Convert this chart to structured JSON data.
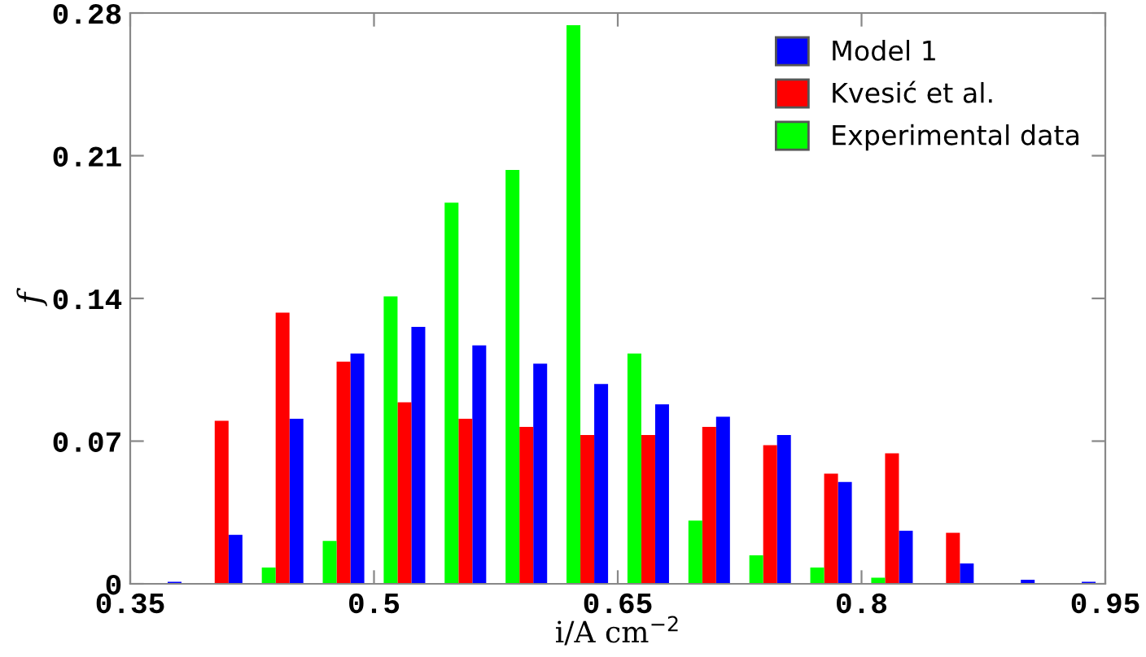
{
  "chart_data": {
    "type": "bar",
    "xlabel": "i/A cm$^{−2}$",
    "ylabel": "f",
    "x": [
      0.36875,
      0.40625,
      0.44375,
      0.48125,
      0.51875,
      0.55625,
      0.59375,
      0.63125,
      0.66875,
      0.70625,
      0.74375,
      0.78125,
      0.81875,
      0.85625,
      0.89375,
      0.93125
    ],
    "series": [
      {
        "name": "Model 1",
        "color": "#0000ff",
        "values": [
          0.001,
          0.024,
          0.081,
          0.113,
          0.126,
          0.117,
          0.108,
          0.098,
          0.088,
          0.082,
          0.073,
          0.05,
          0.026,
          0.01,
          0.002,
          0.001
        ]
      },
      {
        "name": "Kvesić et al.",
        "color": "#ff0000",
        "values": [
          0,
          0.08,
          0.133,
          0.109,
          0.089,
          0.081,
          0.077,
          0.073,
          0.073,
          0.077,
          0.068,
          0.054,
          0.064,
          0.025,
          0,
          0
        ]
      },
      {
        "name": "Experimental data",
        "color": "#00ff00",
        "values": [
          0,
          0,
          0.008,
          0.021,
          0.141,
          0.187,
          0.203,
          0.274,
          0.113,
          0.031,
          0.014,
          0.008,
          0.003,
          0,
          0,
          0
        ]
      }
    ],
    "xlim": [
      0.35,
      0.95
    ],
    "xticks": [
      0.35,
      0.5,
      0.65,
      0.8,
      0.95
    ],
    "ylim": [
      0,
      0.28
    ],
    "yticks": [
      0,
      0.07,
      0.14,
      0.21,
      0.28
    ],
    "legend": "top right",
    "grid": false
  }
}
